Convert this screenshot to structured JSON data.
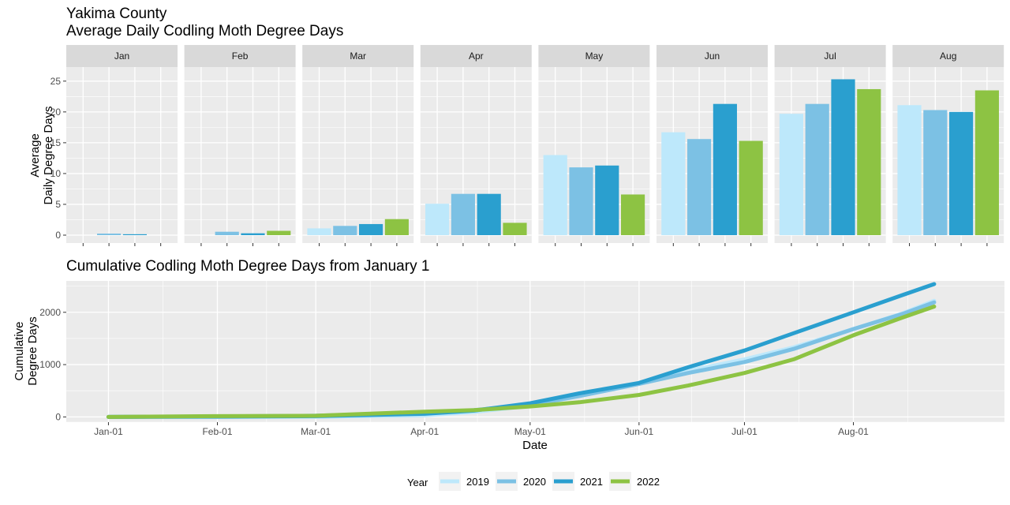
{
  "colors": {
    "2019": "#bde8fb",
    "2020": "#7cc1e4",
    "2021": "#2a9fcf",
    "2022": "#8dc343",
    "panel_bg": "#ebebeb",
    "strip_bg": "#d9d9d9",
    "grid": "#ffffff"
  },
  "chart_data": [
    {
      "type": "bar",
      "title": "Yakima County",
      "subtitle": "Average Daily Codling Moth Degree Days",
      "ylabel": "Average\nDaily Degree Days",
      "ylim": [
        0,
        26
      ],
      "yticks": [
        0,
        5,
        10,
        15,
        20,
        25
      ],
      "grid": true,
      "facets": [
        "Jan",
        "Feb",
        "Mar",
        "Apr",
        "May",
        "Jun",
        "Jul",
        "Aug"
      ],
      "series": [
        {
          "name": "2019",
          "values": [
            0.0,
            0.0,
            1.1,
            5.1,
            13.0,
            16.7,
            19.7,
            21.1
          ]
        },
        {
          "name": "2020",
          "values": [
            0.25,
            0.55,
            1.5,
            6.7,
            11.0,
            15.6,
            21.3,
            20.3
          ]
        },
        {
          "name": "2021",
          "values": [
            0.15,
            0.3,
            1.8,
            6.7,
            11.3,
            21.3,
            25.3,
            20.0
          ]
        },
        {
          "name": "2022",
          "values": [
            0.0,
            0.7,
            2.6,
            2.0,
            6.6,
            15.3,
            23.7,
            23.5
          ]
        }
      ]
    },
    {
      "type": "line",
      "title": "Cumulative Codling Moth Degree Days from January 1",
      "xlabel": "Date",
      "ylabel": "Cumulative\nDegree Days",
      "x_ticks": [
        "Jan-01",
        "Feb-01",
        "Mar-01",
        "Apr-01",
        "May-01",
        "Jun-01",
        "Jul-01",
        "Aug-01"
      ],
      "ylim": [
        -100,
        2600
      ],
      "yticks": [
        0,
        1000,
        2000
      ],
      "grid": true,
      "legend": {
        "title": "Year",
        "position": "bottom"
      },
      "series": [
        {
          "name": "2019",
          "x": [
            "Jan-01",
            "Feb-01",
            "Mar-01",
            "Apr-01",
            "Apr-15",
            "May-01",
            "May-15",
            "Jun-01",
            "Jun-15",
            "Jul-01",
            "Jul-15",
            "Aug-01",
            "Aug-15",
            "Aug-24"
          ],
          "y": [
            0,
            0,
            2,
            30,
            95,
            210,
            400,
            640,
            880,
            1100,
            1330,
            1680,
            1980,
            2220
          ]
        },
        {
          "name": "2020",
          "x": [
            "Jan-01",
            "Feb-01",
            "Mar-01",
            "Apr-01",
            "Apr-15",
            "May-01",
            "May-15",
            "Jun-01",
            "Jun-15",
            "Jul-01",
            "Jul-15",
            "Aug-01",
            "Aug-15",
            "Aug-24"
          ],
          "y": [
            0,
            8,
            24,
            70,
            130,
            230,
            400,
            630,
            840,
            1050,
            1300,
            1680,
            1970,
            2190
          ]
        },
        {
          "name": "2021",
          "x": [
            "Jan-01",
            "Feb-01",
            "Mar-01",
            "Apr-01",
            "Apr-15",
            "May-01",
            "May-15",
            "Jun-01",
            "Jun-15",
            "Jul-01",
            "Jul-15",
            "Aug-01",
            "Aug-15",
            "Aug-24"
          ],
          "y": [
            0,
            5,
            15,
            60,
            120,
            260,
            450,
            650,
            950,
            1270,
            1600,
            2000,
            2330,
            2540
          ]
        },
        {
          "name": "2022",
          "x": [
            "Jan-01",
            "Feb-01",
            "Mar-01",
            "Apr-01",
            "Apr-15",
            "May-01",
            "May-15",
            "Jun-01",
            "Jun-15",
            "Jul-01",
            "Jul-15",
            "Aug-01",
            "Aug-15",
            "Aug-24"
          ],
          "y": [
            0,
            15,
            22,
            100,
            130,
            200,
            280,
            420,
            600,
            840,
            1100,
            1560,
            1900,
            2110
          ]
        }
      ]
    }
  ]
}
